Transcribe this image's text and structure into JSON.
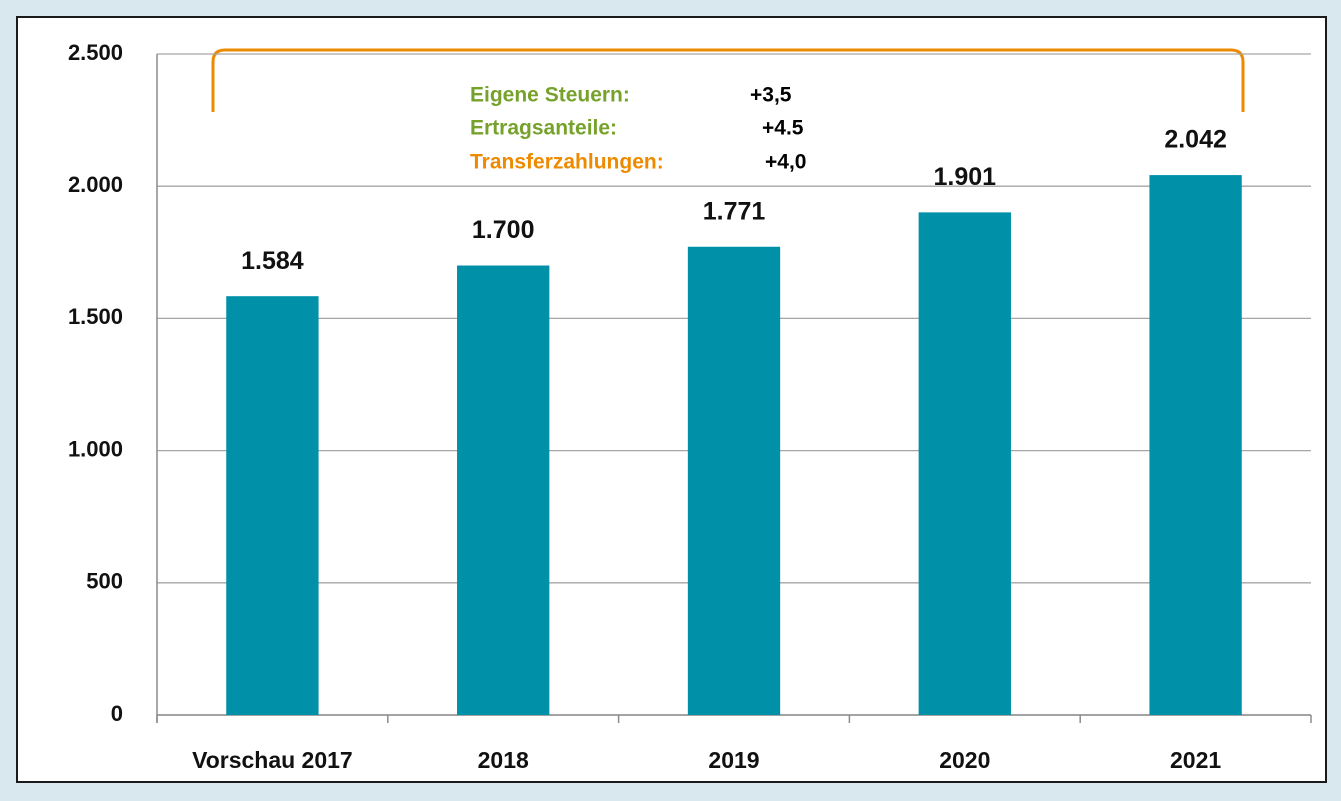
{
  "chart_data": {
    "type": "bar",
    "categories": [
      "Vorschau 2017",
      "2018",
      "2019",
      "2020",
      "2021"
    ],
    "values": [
      1584,
      1700,
      1771,
      1901,
      2042
    ],
    "value_labels": [
      "1.584",
      "1.700",
      "1.771",
      "1.901",
      "2.042"
    ],
    "color": "#0090a8",
    "ylim": [
      0,
      2500
    ],
    "yticks": [
      0,
      500,
      {
        "value": 1000,
        "label": "1.000"
      },
      {
        "value": 1500,
        "label": "1.500"
      },
      {
        "value": 2000,
        "label": "2.000"
      },
      {
        "value": 2500,
        "label": "2.500"
      }
    ],
    "grid": true,
    "annotations": [
      {
        "label": "Eigene Steuern:",
        "value": "+3,5",
        "color": "#76a22c"
      },
      {
        "label": "Ertragsanteile:",
        "value": "+4.5",
        "color": "#76a22c"
      },
      {
        "label": "Transferzahlungen:",
        "value": "+4,0",
        "color": "#ee8a00"
      }
    ]
  }
}
